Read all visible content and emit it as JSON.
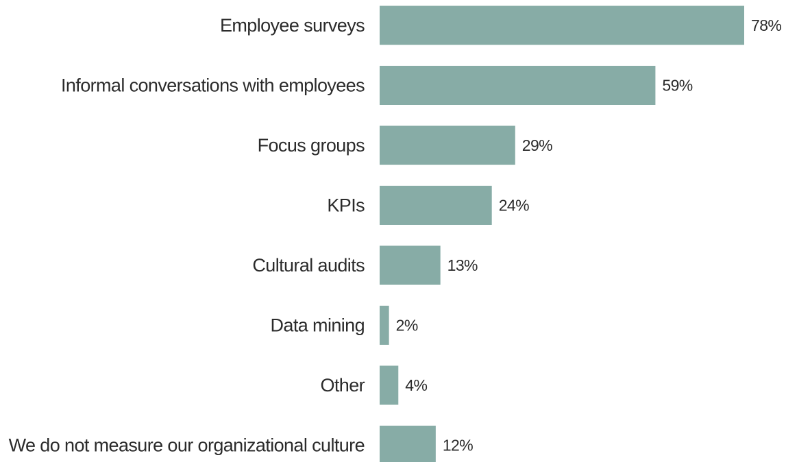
{
  "chart_data": {
    "type": "bar",
    "orientation": "horizontal",
    "categories": [
      "Employee surveys",
      "Informal conversations with employees",
      "Focus groups",
      "KPIs",
      "Cultural audits",
      "Data mining",
      "Other",
      "We do not measure our organizational culture"
    ],
    "values": [
      78,
      59,
      29,
      24,
      13,
      2,
      4,
      12
    ],
    "value_labels": [
      "78%",
      "59%",
      "29%",
      "24%",
      "13%",
      "2%",
      "4%",
      "12%"
    ],
    "unit": "%",
    "xlim": [
      0,
      78
    ],
    "bar_color": "#87aca6",
    "grid": false,
    "legend": "none"
  }
}
